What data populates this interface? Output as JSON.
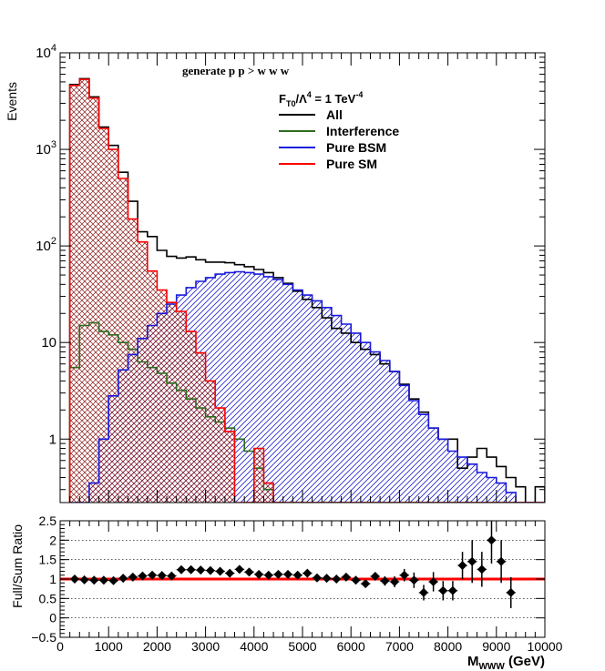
{
  "chart_data": [
    {
      "type": "line",
      "subtype": "step-histogram",
      "annotation": "generate p p > w w w",
      "legend": {
        "placement": "top-right",
        "header": {
          "base": "F",
          "sub": "T0",
          "mid": "/Λ",
          "sup1": "4",
          "eq": " = 1 TeV",
          "sup2": "-4"
        }
      },
      "ylabel": "Events",
      "yscale": "log",
      "ylim": [
        0.22,
        10000
      ],
      "xlim": [
        0,
        10000
      ],
      "ytick_labels": [
        {
          "v": 1,
          "t": "1"
        },
        {
          "v": 10,
          "t": "10"
        },
        {
          "v": 100,
          "t": "10",
          "sup": "2"
        },
        {
          "v": 1000,
          "t": "10",
          "sup": "3"
        },
        {
          "v": 10000,
          "t": "10",
          "sup": "4"
        }
      ],
      "bin_edges_start": 200,
      "bin_width": 200,
      "series": [
        {
          "name": "All",
          "color": "#000000",
          "hatch": "none",
          "values": [
            4700,
            5400,
            3500,
            1700,
            1100,
            580,
            290,
            140,
            125,
            90,
            78,
            75,
            77,
            72,
            68,
            68,
            67,
            64,
            61,
            57,
            53,
            47,
            41,
            34,
            28,
            23,
            18,
            14,
            12.5,
            10,
            8.5,
            7.5,
            6,
            5,
            3.7,
            2.6,
            1.9,
            1.3,
            1,
            1,
            0.5,
            0.65,
            0.8,
            0.65,
            0.52,
            0.4,
            0.32,
            0.22,
            0.32,
            0.22,
            0.22,
            0.22,
            0.22
          ]
        },
        {
          "name": "Interference",
          "color": "#2e6b1e",
          "hatch": "none",
          "values": [
            5.5,
            15,
            16,
            13,
            12,
            10,
            8.5,
            6.3,
            5.5,
            4.8,
            3.8,
            3.2,
            2.6,
            2.1,
            1.7,
            1.5,
            1.3,
            1.0,
            0.75,
            0.5,
            0.3,
            0.22,
            0.22,
            0.22,
            0.22,
            0.22,
            0.22,
            0.22,
            0.22,
            0.22,
            0.22,
            0.22,
            0.22,
            0.22,
            0.22,
            0.22,
            0.22,
            0.22,
            0.22,
            0.22,
            0.22,
            0.22,
            0.22,
            0.22,
            0.22,
            0.22,
            0.22,
            0.22,
            0.22,
            0.22,
            0.22,
            0.22,
            0.22
          ]
        },
        {
          "name": "Pure BSM",
          "color": "#1a1adb",
          "hatch": "diag-right",
          "values": [
            0.22,
            0.22,
            0.35,
            1.0,
            2.8,
            5.2,
            7.5,
            11,
            15,
            20,
            25,
            31,
            37,
            43,
            47,
            51,
            53,
            54,
            53,
            51,
            48,
            45,
            40,
            35,
            31,
            27,
            23,
            19,
            15.5,
            12.5,
            10,
            8,
            6.5,
            5,
            3.6,
            2.5,
            1.8,
            1.3,
            1.0,
            0.75,
            0.65,
            0.55,
            0.45,
            0.4,
            0.35,
            0.28,
            0.22,
            0.22,
            0.22,
            0.22,
            0.22,
            0.22,
            0.22
          ]
        },
        {
          "name": "Pure SM",
          "color": "#ff0000",
          "hatch": "cross",
          "values": [
            4600,
            5300,
            3400,
            1650,
            1000,
            500,
            190,
            110,
            55,
            35,
            26,
            21,
            13,
            7.8,
            4.0,
            2.1,
            1.2,
            0.22,
            0.22,
            0.22,
            0.22,
            0.22,
            0.22,
            0.22,
            0.22,
            0.22,
            0.22,
            0.22,
            0.22,
            0.22,
            0.22,
            0.22,
            0.22,
            0.22,
            0.22,
            0.22,
            0.22,
            0.22,
            0.22,
            0.22,
            0.22,
            0.22,
            0.22,
            0.22,
            0.22,
            0.22,
            0.22,
            0.22,
            0.22,
            0.22,
            0.22,
            0.22,
            0.22
          ]
        }
      ],
      "sm_tail": [
        {
          "x0": 3800,
          "x1": 4000,
          "v": 0.22
        },
        {
          "x0": 4000,
          "x1": 4200,
          "v": 0.8
        },
        {
          "x0": 4200,
          "x1": 4400,
          "v": 0.35
        },
        {
          "x0": 4400,
          "x1": 4600,
          "v": 0.22
        }
      ]
    },
    {
      "type": "scatter",
      "subtype": "ratio-with-errors",
      "ylabel": "Full/Sum Ratio",
      "xlabel": {
        "base": "M",
        "sub": "WWW",
        "rest": " (GeV)"
      },
      "xlim": [
        0,
        10000
      ],
      "ylim": [
        -0.5,
        2.5
      ],
      "xticks": [
        0,
        1000,
        2000,
        3000,
        4000,
        5000,
        6000,
        7000,
        8000,
        9000,
        10000
      ],
      "yticks": [
        -0.5,
        0,
        0.5,
        1,
        1.5,
        2,
        2.5
      ],
      "ytick_labels": [
        "−0.5",
        "0",
        "0.5",
        "1",
        "1.5",
        "2",
        "2.5"
      ],
      "grid": "y-dotted",
      "reference_line": {
        "y": 1,
        "color": "#ff0000"
      },
      "points": [
        [
          300,
          1.0,
          0.03
        ],
        [
          500,
          0.98,
          0.03
        ],
        [
          700,
          0.97,
          0.03
        ],
        [
          900,
          0.97,
          0.03
        ],
        [
          1100,
          0.96,
          0.03
        ],
        [
          1300,
          1.02,
          0.03
        ],
        [
          1500,
          1.05,
          0.03
        ],
        [
          1700,
          1.08,
          0.03
        ],
        [
          1900,
          1.1,
          0.03
        ],
        [
          2100,
          1.09,
          0.03
        ],
        [
          2300,
          1.08,
          0.03
        ],
        [
          2500,
          1.24,
          0.04
        ],
        [
          2700,
          1.24,
          0.04
        ],
        [
          2900,
          1.23,
          0.04
        ],
        [
          3100,
          1.22,
          0.04
        ],
        [
          3300,
          1.2,
          0.04
        ],
        [
          3500,
          1.15,
          0.04
        ],
        [
          3700,
          1.25,
          0.04
        ],
        [
          3900,
          1.18,
          0.04
        ],
        [
          4100,
          1.12,
          0.04
        ],
        [
          4300,
          1.1,
          0.04
        ],
        [
          4500,
          1.12,
          0.04
        ],
        [
          4700,
          1.12,
          0.04
        ],
        [
          4900,
          1.1,
          0.04
        ],
        [
          5100,
          1.15,
          0.04
        ],
        [
          5300,
          1.03,
          0.04
        ],
        [
          5500,
          1.02,
          0.04
        ],
        [
          5700,
          1.0,
          0.05
        ],
        [
          5900,
          1.05,
          0.06
        ],
        [
          6100,
          0.97,
          0.06
        ],
        [
          6300,
          0.88,
          0.08
        ],
        [
          6500,
          1.07,
          0.1
        ],
        [
          6700,
          0.95,
          0.12
        ],
        [
          6900,
          0.93,
          0.14
        ],
        [
          7100,
          1.1,
          0.16
        ],
        [
          7300,
          0.97,
          0.2
        ],
        [
          7500,
          0.65,
          0.2
        ],
        [
          7700,
          0.93,
          0.25
        ],
        [
          7900,
          0.7,
          0.25
        ],
        [
          8100,
          0.7,
          0.25
        ],
        [
          8300,
          1.35,
          0.35
        ],
        [
          8500,
          1.45,
          0.55
        ],
        [
          8700,
          1.25,
          0.45
        ],
        [
          8900,
          2.0,
          0.6
        ],
        [
          9100,
          1.45,
          0.55
        ],
        [
          9300,
          0.65,
          0.4
        ]
      ]
    }
  ]
}
